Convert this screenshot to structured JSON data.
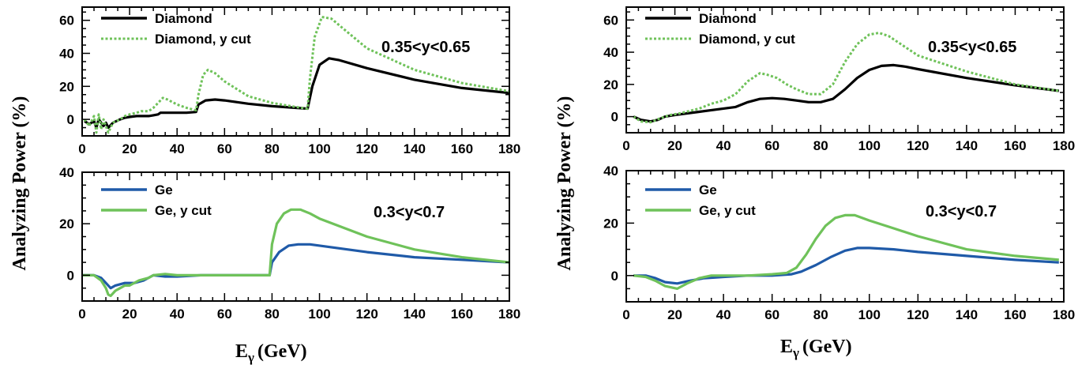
{
  "chart_data": [
    {
      "type": "line",
      "id": "left_top",
      "xlim": [
        0,
        180
      ],
      "ylim": [
        -10,
        68
      ],
      "xticks": [
        "0",
        "20",
        "40",
        "60",
        "80",
        "100",
        "120",
        "140",
        "160",
        "180"
      ],
      "yticks": [
        "0",
        "20",
        "40",
        "60"
      ],
      "annotation": "0.35<y<0.65",
      "series": [
        {
          "name": "Diamond",
          "color": "#000000",
          "style": "solid",
          "points": [
            [
              1,
              -1
            ],
            [
              3,
              -3
            ],
            [
              5,
              -1
            ],
            [
              6,
              -5
            ],
            [
              7,
              0
            ],
            [
              9,
              -4
            ],
            [
              10,
              -2
            ],
            [
              11,
              -5
            ],
            [
              13,
              -2
            ],
            [
              16,
              0
            ],
            [
              18,
              1
            ],
            [
              20,
              1.5
            ],
            [
              23,
              2
            ],
            [
              25,
              2
            ],
            [
              28,
              2
            ],
            [
              30,
              2.5
            ],
            [
              32,
              3
            ],
            [
              33,
              4
            ],
            [
              36,
              4
            ],
            [
              40,
              4
            ],
            [
              44,
              4
            ],
            [
              48,
              4.5
            ],
            [
              49,
              9
            ],
            [
              52,
              11.5
            ],
            [
              56,
              12
            ],
            [
              60,
              11.5
            ],
            [
              70,
              9.5
            ],
            [
              80,
              8
            ],
            [
              90,
              7
            ],
            [
              95,
              6.5
            ],
            [
              97,
              20
            ],
            [
              100,
              33
            ],
            [
              104,
              37
            ],
            [
              108,
              36
            ],
            [
              120,
              31
            ],
            [
              140,
              24
            ],
            [
              160,
              19
            ],
            [
              180,
              16
            ]
          ]
        },
        {
          "name": "Diamond, y cut",
          "color": "#6fc25a",
          "style": "dotted",
          "points": [
            [
              1,
              0
            ],
            [
              3,
              -4
            ],
            [
              5,
              2
            ],
            [
              6,
              -8
            ],
            [
              7,
              3
            ],
            [
              8,
              -6
            ],
            [
              9,
              0
            ],
            [
              11,
              -8
            ],
            [
              13,
              -2
            ],
            [
              16,
              0
            ],
            [
              18,
              2
            ],
            [
              20,
              3
            ],
            [
              23,
              4
            ],
            [
              25,
              5
            ],
            [
              28,
              5
            ],
            [
              30,
              7
            ],
            [
              32,
              10
            ],
            [
              34,
              13
            ],
            [
              36,
              12
            ],
            [
              40,
              9
            ],
            [
              44,
              7
            ],
            [
              48,
              5.5
            ],
            [
              49,
              15
            ],
            [
              51,
              27
            ],
            [
              53,
              30
            ],
            [
              56,
              28
            ],
            [
              60,
              23
            ],
            [
              70,
              14
            ],
            [
              80,
              10
            ],
            [
              90,
              7.5
            ],
            [
              95,
              6.5
            ],
            [
              96,
              25
            ],
            [
              98,
              50
            ],
            [
              101,
              62
            ],
            [
              105,
              61
            ],
            [
              110,
              55
            ],
            [
              120,
              43
            ],
            [
              140,
              30
            ],
            [
              160,
              22
            ],
            [
              180,
              17
            ]
          ]
        }
      ]
    },
    {
      "type": "line",
      "id": "left_bottom",
      "xlim": [
        0,
        180
      ],
      "ylim": [
        -10,
        40
      ],
      "xticks": [
        "0",
        "20",
        "40",
        "60",
        "80",
        "100",
        "120",
        "140",
        "160",
        "180"
      ],
      "yticks": [
        "0",
        "20",
        "40"
      ],
      "annotation": "0.3<y<0.7",
      "series": [
        {
          "name": "Ge",
          "color": "#1f5aa8",
          "style": "solid",
          "points": [
            [
              0,
              0
            ],
            [
              5,
              0
            ],
            [
              8,
              -1
            ],
            [
              10,
              -3
            ],
            [
              12,
              -5
            ],
            [
              14,
              -4
            ],
            [
              18,
              -3
            ],
            [
              22,
              -3
            ],
            [
              26,
              -2
            ],
            [
              30,
              0
            ],
            [
              35,
              -0.5
            ],
            [
              40,
              -0.5
            ],
            [
              50,
              0
            ],
            [
              60,
              0
            ],
            [
              70,
              0
            ],
            [
              79,
              0
            ],
            [
              80,
              5
            ],
            [
              83,
              9
            ],
            [
              87,
              11.5
            ],
            [
              91,
              12
            ],
            [
              96,
              12
            ],
            [
              100,
              11.5
            ],
            [
              120,
              9
            ],
            [
              140,
              7
            ],
            [
              160,
              6
            ],
            [
              180,
              5
            ]
          ]
        },
        {
          "name": "Ge, y cut",
          "color": "#6fc25a",
          "style": "solid",
          "points": [
            [
              0,
              0
            ],
            [
              5,
              0
            ],
            [
              8,
              -2
            ],
            [
              10,
              -5
            ],
            [
              11,
              -7.5
            ],
            [
              12,
              -8
            ],
            [
              14,
              -6
            ],
            [
              16,
              -5
            ],
            [
              18,
              -4
            ],
            [
              20,
              -4
            ],
            [
              24,
              -2
            ],
            [
              28,
              -1
            ],
            [
              30,
              0
            ],
            [
              35,
              0.5
            ],
            [
              40,
              0
            ],
            [
              50,
              0
            ],
            [
              60,
              0
            ],
            [
              70,
              0
            ],
            [
              79,
              0
            ],
            [
              80,
              12
            ],
            [
              82,
              20
            ],
            [
              85,
              24
            ],
            [
              88,
              25.5
            ],
            [
              92,
              25.5
            ],
            [
              96,
              24
            ],
            [
              100,
              22
            ],
            [
              120,
              15
            ],
            [
              140,
              10
            ],
            [
              160,
              7
            ],
            [
              180,
              5
            ]
          ]
        }
      ]
    },
    {
      "type": "line",
      "id": "right_top",
      "xlim": [
        0,
        180
      ],
      "ylim": [
        -10,
        68
      ],
      "xticks": [
        "0",
        "20",
        "40",
        "60",
        "80",
        "100",
        "120",
        "140",
        "160",
        "180"
      ],
      "yticks": [
        "0",
        "20",
        "40",
        "60"
      ],
      "annotation": "0.35<y<0.65",
      "series": [
        {
          "name": "Diamond",
          "color": "#000000",
          "style": "solid",
          "points": [
            [
              3,
              0
            ],
            [
              6,
              -2
            ],
            [
              10,
              -3
            ],
            [
              13,
              -2
            ],
            [
              16,
              0
            ],
            [
              20,
              1
            ],
            [
              30,
              3
            ],
            [
              40,
              5
            ],
            [
              45,
              6
            ],
            [
              50,
              9
            ],
            [
              55,
              11
            ],
            [
              60,
              11.5
            ],
            [
              65,
              11
            ],
            [
              70,
              10
            ],
            [
              75,
              9
            ],
            [
              80,
              9
            ],
            [
              85,
              11
            ],
            [
              90,
              17
            ],
            [
              95,
              24
            ],
            [
              100,
              29
            ],
            [
              105,
              31.5
            ],
            [
              110,
              32
            ],
            [
              115,
              31
            ],
            [
              120,
              29.5
            ],
            [
              140,
              24
            ],
            [
              160,
              19.5
            ],
            [
              178,
              16
            ]
          ]
        },
        {
          "name": "Diamond, y cut",
          "color": "#6fc25a",
          "style": "dotted",
          "points": [
            [
              3,
              0
            ],
            [
              6,
              -3
            ],
            [
              10,
              -3.5
            ],
            [
              14,
              -1
            ],
            [
              18,
              1
            ],
            [
              22,
              2
            ],
            [
              30,
              5
            ],
            [
              35,
              8
            ],
            [
              40,
              10
            ],
            [
              45,
              14
            ],
            [
              50,
              22
            ],
            [
              55,
              27
            ],
            [
              58,
              26
            ],
            [
              62,
              24
            ],
            [
              66,
              20
            ],
            [
              70,
              17
            ],
            [
              75,
              14
            ],
            [
              80,
              14
            ],
            [
              85,
              20
            ],
            [
              90,
              34
            ],
            [
              95,
              45
            ],
            [
              100,
              51
            ],
            [
              104,
              52
            ],
            [
              108,
              50
            ],
            [
              115,
              43
            ],
            [
              120,
              38
            ],
            [
              140,
              28
            ],
            [
              160,
              20
            ],
            [
              178,
              16
            ]
          ]
        }
      ]
    },
    {
      "type": "line",
      "id": "right_bottom",
      "xlim": [
        0,
        180
      ],
      "ylim": [
        -10,
        40
      ],
      "xticks": [
        "0",
        "20",
        "40",
        "60",
        "80",
        "100",
        "120",
        "140",
        "160",
        "180"
      ],
      "yticks": [
        "0",
        "20",
        "40"
      ],
      "annotation": "0.3<y<0.7",
      "series": [
        {
          "name": "Ge",
          "color": "#1f5aa8",
          "style": "solid",
          "points": [
            [
              3,
              0
            ],
            [
              8,
              0
            ],
            [
              12,
              -1
            ],
            [
              16,
              -2.5
            ],
            [
              21,
              -3
            ],
            [
              26,
              -2
            ],
            [
              32,
              -1
            ],
            [
              40,
              -0.5
            ],
            [
              50,
              0
            ],
            [
              60,
              0
            ],
            [
              68,
              0.5
            ],
            [
              72,
              1.5
            ],
            [
              78,
              4
            ],
            [
              84,
              7
            ],
            [
              90,
              9.5
            ],
            [
              95,
              10.5
            ],
            [
              100,
              10.5
            ],
            [
              110,
              10
            ],
            [
              120,
              9
            ],
            [
              140,
              7.5
            ],
            [
              160,
              6
            ],
            [
              178,
              5
            ]
          ]
        },
        {
          "name": "Ge, y cut",
          "color": "#6fc25a",
          "style": "solid",
          "points": [
            [
              3,
              0
            ],
            [
              8,
              -0.5
            ],
            [
              12,
              -2
            ],
            [
              16,
              -4
            ],
            [
              21,
              -5
            ],
            [
              25,
              -3
            ],
            [
              30,
              -1
            ],
            [
              35,
              0
            ],
            [
              40,
              0
            ],
            [
              50,
              0
            ],
            [
              60,
              0.5
            ],
            [
              66,
              1
            ],
            [
              70,
              3
            ],
            [
              74,
              8
            ],
            [
              78,
              14
            ],
            [
              82,
              19
            ],
            [
              86,
              22
            ],
            [
              90,
              23
            ],
            [
              94,
              23
            ],
            [
              100,
              21
            ],
            [
              110,
              18
            ],
            [
              120,
              15
            ],
            [
              140,
              10
            ],
            [
              160,
              7.5
            ],
            [
              178,
              6
            ]
          ]
        }
      ]
    }
  ],
  "axis_titles": {
    "y_left": "Analyzing Power (%)",
    "y_right": "Analyzing Power (%)",
    "x_left": "E",
    "x_left_sub": "γ",
    "x_left_unit": "(GeV)",
    "x_right": "E",
    "x_right_sub": "γ",
    "x_right_unit": "(GeV)"
  }
}
